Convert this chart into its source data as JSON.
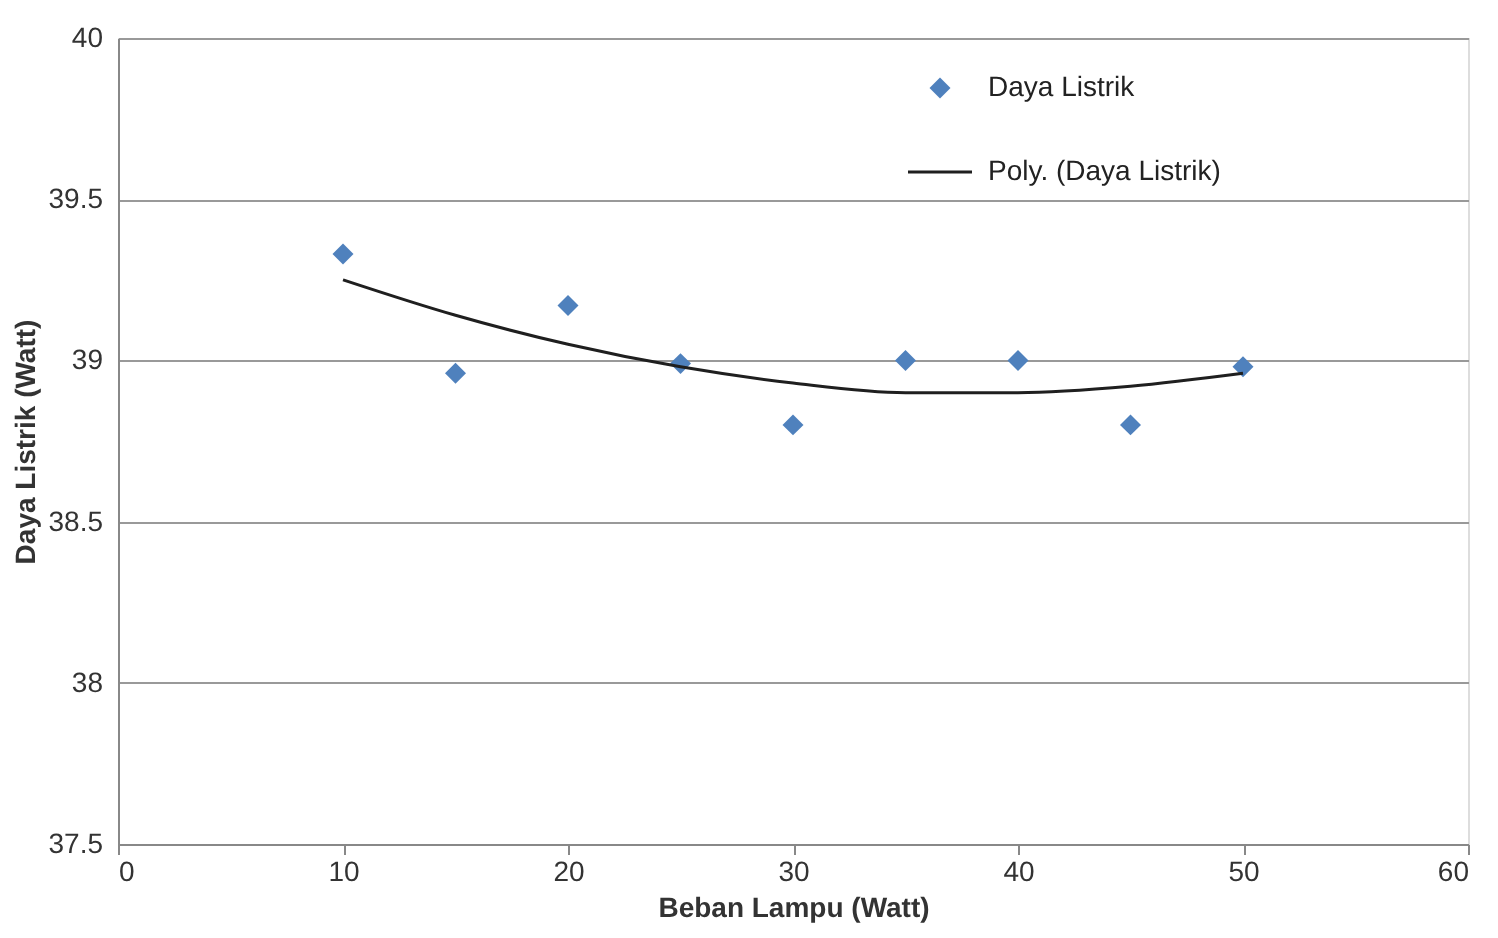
{
  "chart_data": {
    "type": "scatter",
    "xlabel": "Beban Lampu (Watt)",
    "ylabel": "Daya Listrik (Watt)",
    "xlim": [
      0,
      60
    ],
    "xticks": [
      0,
      10,
      20,
      30,
      40,
      50,
      60
    ],
    "ylim": [
      37.5,
      40
    ],
    "yticks": [
      37.5,
      38,
      38.5,
      39,
      39.5,
      40
    ],
    "grid": "y",
    "legend": "top right",
    "series": [
      {
        "name": "Daya Listrik",
        "marker": "diamond",
        "color": "#4f81bd",
        "x": [
          10,
          15,
          20,
          25,
          30,
          35,
          40,
          45,
          50
        ],
        "values": [
          39.33,
          38.96,
          39.17,
          38.99,
          38.8,
          39.0,
          39.0,
          38.8,
          38.98
        ]
      },
      {
        "name": "Poly. (Daya Listrik)",
        "type": "line",
        "marker": "none",
        "color": "#1f1f1f",
        "line_style": "solid",
        "x": [
          10,
          15,
          20,
          25,
          30,
          35,
          40,
          45,
          50
        ],
        "values": [
          39.25,
          39.14,
          39.05,
          38.98,
          38.93,
          38.9,
          38.9,
          38.92,
          38.96
        ]
      }
    ]
  }
}
